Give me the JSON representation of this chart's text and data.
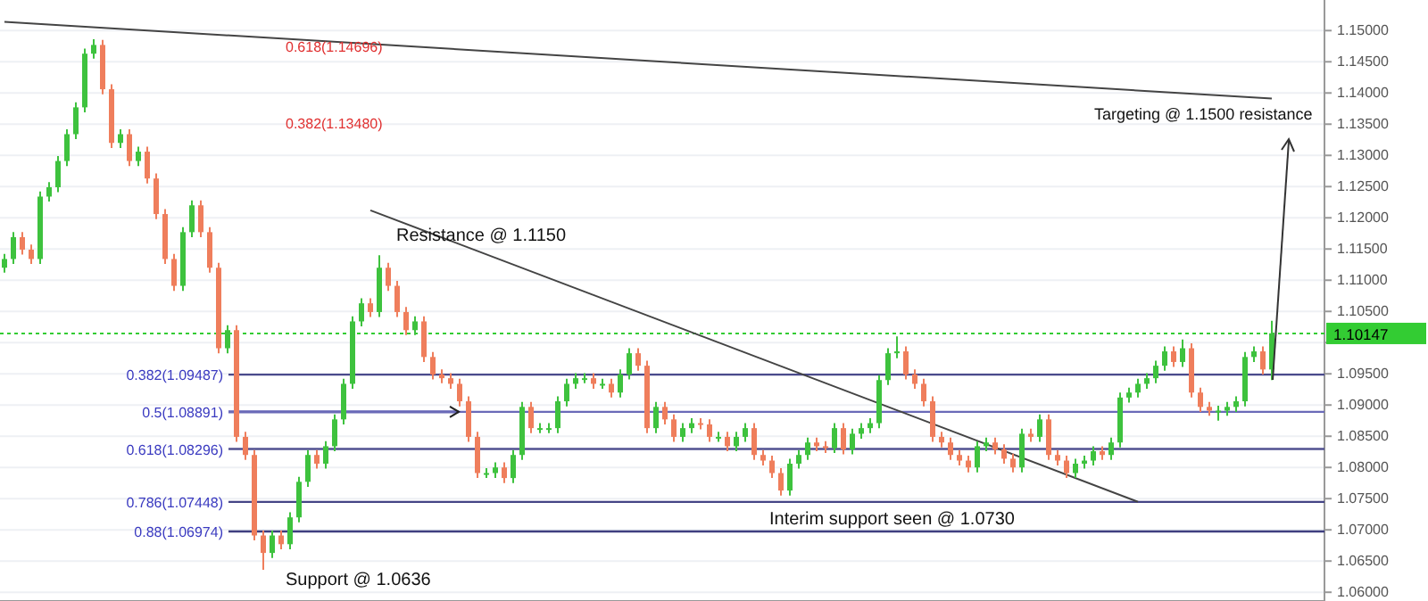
{
  "chart_data": {
    "type": "candlestick",
    "categories": [
      null,
      null,
      null,
      null,
      null,
      null,
      null,
      null,
      null,
      null,
      null,
      null,
      null,
      null,
      null,
      null,
      null,
      null,
      null,
      null,
      null,
      null,
      null,
      null,
      null,
      null,
      null,
      null,
      null,
      null,
      null,
      null,
      null,
      null,
      null,
      null,
      null,
      null,
      null,
      null,
      null,
      null,
      null,
      null,
      null,
      null,
      null,
      null,
      null,
      null,
      null,
      null,
      null,
      null,
      null,
      null,
      null,
      null,
      null,
      null,
      null,
      null,
      null,
      null,
      null,
      null,
      null,
      null,
      null,
      null,
      null,
      null,
      null,
      null,
      null,
      null,
      null,
      null,
      null,
      null,
      null,
      null,
      null,
      null,
      null,
      null,
      null,
      null,
      null,
      null,
      null,
      null,
      null,
      null,
      null,
      null,
      null,
      null,
      null,
      null,
      null,
      null,
      null,
      null,
      null,
      null,
      null,
      null,
      null,
      null,
      null,
      null,
      null,
      null,
      null,
      null,
      null,
      null,
      null,
      null,
      null,
      null,
      null,
      null,
      null,
      null,
      null,
      null,
      null,
      null,
      null,
      null,
      null,
      null,
      null,
      null,
      null,
      null,
      null,
      null,
      null,
      null,
      null
    ],
    "ohlc": [
      [
        1.112,
        1.1142,
        1.1112,
        1.1134
      ],
      [
        1.1134,
        1.1177,
        1.1126,
        1.1169
      ],
      [
        1.1169,
        1.1177,
        1.1141,
        1.1149
      ],
      [
        1.1149,
        1.1157,
        1.1126,
        1.1134
      ],
      [
        1.1134,
        1.1242,
        1.1126,
        1.1234
      ],
      [
        1.1234,
        1.1257,
        1.1226,
        1.1249
      ],
      [
        1.1249,
        1.1299,
        1.1241,
        1.1291
      ],
      [
        1.1291,
        1.1342,
        1.1283,
        1.1334
      ],
      [
        1.1334,
        1.1385,
        1.1326,
        1.1377
      ],
      [
        1.1377,
        1.1471,
        1.1369,
        1.1463
      ],
      [
        1.1463,
        1.1486,
        1.1455,
        1.1477
      ],
      [
        1.1477,
        1.1485,
        1.1398,
        1.1406
      ],
      [
        1.1406,
        1.1414,
        1.1312,
        1.132
      ],
      [
        1.132,
        1.1342,
        1.1312,
        1.1334
      ],
      [
        1.1334,
        1.1342,
        1.1283,
        1.1291
      ],
      [
        1.1291,
        1.1314,
        1.1283,
        1.1306
      ],
      [
        1.1306,
        1.1314,
        1.1255,
        1.1263
      ],
      [
        1.1263,
        1.1271,
        1.1198,
        1.1206
      ],
      [
        1.1206,
        1.1214,
        1.1126,
        1.1134
      ],
      [
        1.1134,
        1.1142,
        1.1083,
        1.1091
      ],
      [
        1.1091,
        1.1185,
        1.1083,
        1.1177
      ],
      [
        1.1177,
        1.1228,
        1.1169,
        1.122
      ],
      [
        1.122,
        1.1228,
        1.1169,
        1.1177
      ],
      [
        1.1177,
        1.1185,
        1.1112,
        1.112
      ],
      [
        1.112,
        1.1128,
        1.0983,
        1.0991
      ],
      [
        1.0991,
        1.1028,
        1.0983,
        1.102
      ],
      [
        1.102,
        1.1028,
        1.0841,
        1.0849
      ],
      [
        1.0849,
        1.0857,
        1.0812,
        1.082
      ],
      [
        1.082,
        1.0828,
        1.0683,
        1.0691
      ],
      [
        1.0691,
        1.0699,
        1.0636,
        1.0663
      ],
      [
        1.0663,
        1.0699,
        1.0655,
        1.0691
      ],
      [
        1.0691,
        1.0699,
        1.0669,
        1.0677
      ],
      [
        1.0677,
        1.0728,
        1.0669,
        1.072
      ],
      [
        1.072,
        1.0785,
        1.0712,
        1.0777
      ],
      [
        1.0777,
        1.0828,
        1.0769,
        1.082
      ],
      [
        1.082,
        1.0828,
        1.0798,
        1.0806
      ],
      [
        1.0806,
        1.0842,
        1.0798,
        1.0834
      ],
      [
        1.0834,
        1.0885,
        1.0826,
        1.0877
      ],
      [
        1.0877,
        1.0942,
        1.0869,
        1.0934
      ],
      [
        1.0934,
        1.1042,
        1.0926,
        1.1034
      ],
      [
        1.1034,
        1.1071,
        1.1026,
        1.1063
      ],
      [
        1.1063,
        1.1071,
        1.1041,
        1.1049
      ],
      [
        1.1049,
        1.114,
        1.1041,
        1.112
      ],
      [
        1.112,
        1.1128,
        1.1083,
        1.1091
      ],
      [
        1.1091,
        1.1099,
        1.1041,
        1.1049
      ],
      [
        1.1049,
        1.1057,
        1.1012,
        1.102
      ],
      [
        1.102,
        1.1042,
        1.1012,
        1.1034
      ],
      [
        1.1034,
        1.1042,
        1.0969,
        1.0977
      ],
      [
        1.0977,
        1.0985,
        1.0941,
        1.0949
      ],
      [
        1.0949,
        1.0957,
        1.0935,
        1.0943
      ],
      [
        1.0943,
        1.0951,
        1.0926,
        1.0934
      ],
      [
        1.0934,
        1.0942,
        1.0898,
        1.0906
      ],
      [
        1.0906,
        1.0914,
        1.0841,
        1.0849
      ],
      [
        1.0849,
        1.0857,
        1.0783,
        1.0791
      ],
      [
        1.0791,
        1.0799,
        1.0783,
        1.0791
      ],
      [
        1.0791,
        1.0808,
        1.0783,
        1.08
      ],
      [
        1.08,
        1.0808,
        1.0775,
        1.0783
      ],
      [
        1.0783,
        1.0828,
        1.0775,
        1.082
      ],
      [
        1.082,
        1.0905,
        1.0812,
        1.0897
      ],
      [
        1.0897,
        1.0905,
        1.0855,
        1.0863
      ],
      [
        1.0863,
        1.0871,
        1.0855,
        1.0863
      ],
      [
        1.0863,
        1.0871,
        1.0855,
        1.0863
      ],
      [
        1.0863,
        1.0914,
        1.0855,
        1.0906
      ],
      [
        1.0906,
        1.0942,
        1.0898,
        1.0934
      ],
      [
        1.0934,
        1.0951,
        1.0926,
        1.0943
      ],
      [
        1.0943,
        1.0951,
        1.0935,
        1.0943
      ],
      [
        1.0943,
        1.0951,
        1.0926,
        1.0934
      ],
      [
        1.0934,
        1.0942,
        1.0926,
        1.0934
      ],
      [
        1.0934,
        1.0942,
        1.0912,
        1.092
      ],
      [
        1.092,
        1.0957,
        1.0912,
        1.0949
      ],
      [
        1.0949,
        1.0991,
        1.0941,
        1.0983
      ],
      [
        1.0983,
        1.0991,
        1.0955,
        1.0963
      ],
      [
        1.0963,
        1.0971,
        1.0855,
        1.0863
      ],
      [
        1.0863,
        1.0905,
        1.0855,
        1.0897
      ],
      [
        1.0897,
        1.0905,
        1.0869,
        1.0877
      ],
      [
        1.0877,
        1.0885,
        1.0841,
        1.0849
      ],
      [
        1.0849,
        1.0871,
        1.0841,
        1.0863
      ],
      [
        1.0863,
        1.0879,
        1.0855,
        1.0871
      ],
      [
        1.0871,
        1.0879,
        1.0861,
        1.0869
      ],
      [
        1.0869,
        1.0877,
        1.0841,
        1.0849
      ],
      [
        1.0849,
        1.0857,
        1.0841,
        1.0849
      ],
      [
        1.0849,
        1.0857,
        1.0826,
        1.0834
      ],
      [
        1.0834,
        1.0857,
        1.0826,
        1.0849
      ],
      [
        1.0849,
        1.0871,
        1.0841,
        1.0863
      ],
      [
        1.0863,
        1.0871,
        1.0812,
        1.082
      ],
      [
        1.082,
        1.0828,
        1.0803,
        1.0811
      ],
      [
        1.0811,
        1.0819,
        1.0783,
        1.0791
      ],
      [
        1.0791,
        1.0799,
        1.0755,
        1.0763
      ],
      [
        1.0763,
        1.0814,
        1.0755,
        1.0806
      ],
      [
        1.0806,
        1.0828,
        1.0798,
        1.082
      ],
      [
        1.082,
        1.0848,
        1.0812,
        1.084
      ],
      [
        1.084,
        1.0848,
        1.0826,
        1.0834
      ],
      [
        1.0834,
        1.0842,
        1.0823,
        1.0831
      ],
      [
        1.0831,
        1.0871,
        1.0823,
        1.0863
      ],
      [
        1.0863,
        1.0871,
        1.0821,
        1.0829
      ],
      [
        1.0829,
        1.0862,
        1.0821,
        1.0854
      ],
      [
        1.0854,
        1.0871,
        1.0846,
        1.0863
      ],
      [
        1.0863,
        1.0879,
        1.0855,
        1.0871
      ],
      [
        1.0871,
        1.0948,
        1.0863,
        1.094
      ],
      [
        1.094,
        1.0991,
        1.0932,
        1.0983
      ],
      [
        1.0983,
        1.101,
        1.0975,
        1.0986
      ],
      [
        1.0986,
        1.0994,
        1.0941,
        1.0949
      ],
      [
        1.0949,
        1.0957,
        1.0926,
        1.0934
      ],
      [
        1.0934,
        1.0942,
        1.0898,
        1.0906
      ],
      [
        1.0906,
        1.0914,
        1.0841,
        1.0849
      ],
      [
        1.0849,
        1.0857,
        1.0832,
        1.084
      ],
      [
        1.084,
        1.0848,
        1.0812,
        1.082
      ],
      [
        1.082,
        1.0828,
        1.0803,
        1.0811
      ],
      [
        1.0811,
        1.0819,
        1.0792,
        1.08
      ],
      [
        1.08,
        1.0842,
        1.0792,
        1.0834
      ],
      [
        1.0834,
        1.0848,
        1.0826,
        1.084
      ],
      [
        1.084,
        1.0848,
        1.0821,
        1.0829
      ],
      [
        1.0829,
        1.0837,
        1.0806,
        1.0814
      ],
      [
        1.0814,
        1.0822,
        1.0792,
        1.08
      ],
      [
        1.08,
        1.0862,
        1.0792,
        1.0854
      ],
      [
        1.0854,
        1.0862,
        1.0841,
        1.0849
      ],
      [
        1.0849,
        1.0885,
        1.0841,
        1.0877
      ],
      [
        1.0877,
        1.0885,
        1.0812,
        1.082
      ],
      [
        1.082,
        1.0828,
        1.0803,
        1.0811
      ],
      [
        1.0811,
        1.0819,
        1.0783,
        1.0791
      ],
      [
        1.0791,
        1.0814,
        1.0783,
        1.0806
      ],
      [
        1.0806,
        1.0819,
        1.0798,
        1.0811
      ],
      [
        1.0811,
        1.0834,
        1.0803,
        1.0826
      ],
      [
        1.0826,
        1.0834,
        1.0812,
        1.082
      ],
      [
        1.082,
        1.0848,
        1.0812,
        1.084
      ],
      [
        1.084,
        1.092,
        1.0832,
        1.0912
      ],
      [
        1.0912,
        1.0928,
        1.0904,
        1.092
      ],
      [
        1.092,
        1.0942,
        1.0912,
        1.0934
      ],
      [
        1.0934,
        1.0951,
        1.0926,
        1.0943
      ],
      [
        1.0943,
        1.0971,
        1.0935,
        1.0963
      ],
      [
        1.0963,
        1.0994,
        1.0955,
        1.0986
      ],
      [
        1.0986,
        1.0994,
        1.0961,
        1.0969
      ],
      [
        1.0969,
        1.1005,
        1.0961,
        1.0991
      ],
      [
        1.0991,
        1.0999,
        1.0912,
        1.092
      ],
      [
        1.092,
        1.0928,
        1.0889,
        1.0897
      ],
      [
        1.0897,
        1.0905,
        1.0883,
        1.0891
      ],
      [
        1.0891,
        1.0899,
        1.0875,
        1.0891
      ],
      [
        1.0891,
        1.0905,
        1.0883,
        1.0897
      ],
      [
        1.0897,
        1.0914,
        1.0889,
        1.0906
      ],
      [
        1.0906,
        1.0985,
        1.0898,
        1.0977
      ],
      [
        1.0977,
        1.0994,
        1.0969,
        1.0986
      ],
      [
        1.0986,
        1.0994,
        1.0949,
        1.0957
      ],
      [
        1.0957,
        1.1035,
        1.094,
        1.1015
      ]
    ],
    "series": [
      {
        "type": "line",
        "values": [
          1.1514,
          null,
          null,
          null,
          null,
          null,
          null,
          null,
          null,
          null,
          null,
          null,
          null,
          null,
          null,
          null,
          null,
          null,
          null,
          null,
          null,
          null,
          null,
          null,
          null,
          null,
          null,
          null,
          null,
          null,
          null,
          null,
          null,
          null,
          null,
          null,
          null,
          null,
          null,
          null,
          null,
          null,
          null,
          null,
          null,
          null,
          null,
          null,
          null,
          null,
          null,
          null,
          null,
          null,
          null,
          null,
          null,
          null,
          null,
          null,
          null,
          null,
          null,
          null,
          null,
          null,
          null,
          null,
          null,
          null,
          null,
          null,
          null,
          null,
          null,
          null,
          null,
          null,
          null,
          null,
          null,
          null,
          null,
          null,
          null,
          null,
          null,
          null,
          null,
          null,
          null,
          null,
          null,
          null,
          null,
          null,
          null,
          null,
          null,
          null,
          null,
          null,
          null,
          null,
          null,
          null,
          null,
          null,
          null,
          null,
          null,
          null,
          null,
          null,
          null,
          null,
          null,
          null,
          null,
          null,
          null,
          null,
          null,
          null,
          null,
          null,
          null,
          null,
          null,
          null,
          null,
          null,
          null,
          null,
          null,
          null,
          null,
          null,
          null,
          null,
          null,
          null,
          1.1391
        ],
        "color": "#444444"
      },
      {
        "type": "line",
        "values": [
          null,
          null,
          null,
          null,
          null,
          null,
          null,
          null,
          null,
          null,
          null,
          null,
          null,
          null,
          null,
          null,
          null,
          null,
          null,
          null,
          null,
          null,
          null,
          null,
          null,
          null,
          null,
          null,
          null,
          null,
          null,
          null,
          null,
          null,
          null,
          null,
          null,
          null,
          null,
          null,
          null,
          1.1212,
          null,
          null,
          null,
          null,
          null,
          null,
          null,
          null,
          null,
          null,
          null,
          null,
          null,
          null,
          null,
          null,
          null,
          null,
          null,
          null,
          null,
          null,
          null,
          null,
          null,
          null,
          null,
          null,
          null,
          null,
          null,
          null,
          null,
          null,
          null,
          null,
          null,
          null,
          null,
          null,
          null,
          null,
          null,
          null,
          null,
          null,
          null,
          null,
          null,
          null,
          null,
          null,
          null,
          null,
          null,
          null,
          null,
          null,
          null,
          null,
          null,
          null,
          null,
          null,
          null,
          null,
          null,
          null,
          null,
          null,
          null,
          null,
          null,
          null,
          null,
          null,
          null,
          null,
          null,
          null,
          null,
          null,
          null,
          null,
          null,
          1.0745,
          null,
          null,
          null,
          null,
          null,
          null,
          null,
          null,
          null,
          null,
          null,
          null,
          null,
          null,
          null
        ],
        "color": "#444444"
      }
    ],
    "ylim": [
      1.0586,
      1.1549
    ],
    "yticks": [
      {
        "value": 1.06,
        "label": "1.06000"
      },
      {
        "value": 1.065,
        "label": "1.06500"
      },
      {
        "value": 1.07,
        "label": "1.07000"
      },
      {
        "value": 1.075,
        "label": "1.07500"
      },
      {
        "value": 1.08,
        "label": "1.08000"
      },
      {
        "value": 1.085,
        "label": "1.08500"
      },
      {
        "value": 1.09,
        "label": "1.09000"
      },
      {
        "value": 1.095,
        "label": "1.09500"
      },
      {
        "value": 1.1,
        "label": null
      },
      {
        "value": 1.105,
        "label": "1.10500"
      },
      {
        "value": 1.11,
        "label": "1.11000"
      },
      {
        "value": 1.115,
        "label": "1.11500"
      },
      {
        "value": 1.12,
        "label": "1.12000"
      },
      {
        "value": 1.125,
        "label": "1.12500"
      },
      {
        "value": 1.13,
        "label": "1.13000"
      },
      {
        "value": 1.135,
        "label": "1.13500"
      },
      {
        "value": 1.14,
        "label": "1.14000"
      },
      {
        "value": 1.145,
        "label": "1.14500"
      },
      {
        "value": 1.15,
        "label": "1.15000"
      }
    ],
    "tick_labels": "y",
    "grid": "y",
    "ref_lines": [
      {
        "axis": "y",
        "value": 1.10147,
        "label": "1.10147",
        "color": "#33cc33",
        "line_style": "dotted"
      },
      {
        "axis": "y",
        "value": 1.09487,
        "label": "0.382(1.09487)",
        "color": "#4a4a8c"
      },
      {
        "axis": "y",
        "value": 1.08891,
        "label": "0.5(1.08891)",
        "color": "#6a6ab8"
      },
      {
        "axis": "y",
        "value": 1.08296,
        "label": "0.618(1.08296)",
        "color": "#505090"
      },
      {
        "axis": "y",
        "value": 1.07448,
        "label": "0.786(1.07448)",
        "color": "#454586"
      },
      {
        "axis": "y",
        "value": 1.06974,
        "label": "0.88(1.06974)",
        "color": "#3f3f80"
      }
    ],
    "annotations": [
      "0.618(1.14696)",
      "0.382(1.13480)",
      "Resistance @ 1.1150",
      "Targeting @ 1.1500 resistance",
      "Interim support seen @ 1.0730",
      "Support @ 1.0636"
    ]
  }
}
